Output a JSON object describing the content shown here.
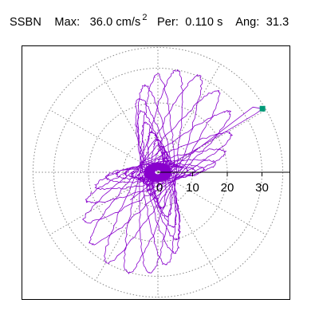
{
  "header": {
    "station": "SSBN",
    "max_label": "Max:",
    "max_value": "36.0",
    "max_unit": "cm/s",
    "max_exp": "2",
    "per_label": "Per:",
    "per_value": "0.110 s",
    "ang_label": "Ang:",
    "ang_value": "31.3"
  },
  "colors": {
    "trace": "#8800cc",
    "marker": "#009977",
    "grid": "#888888",
    "axis": "#000000"
  },
  "chart_data": {
    "type": "scatter",
    "title": "",
    "xlabel": "",
    "ylabel": "",
    "polar": true,
    "grid": true,
    "rings": [
      10,
      20,
      30
    ],
    "spokes_deg": [
      30,
      60,
      90,
      120,
      150,
      180,
      210,
      240,
      270,
      300,
      330
    ],
    "axis_range": [
      0,
      36
    ],
    "tick_labels": [
      "10",
      "20",
      "30"
    ],
    "peak": {
      "magnitude": 36.0,
      "angle_deg": 31.3
    },
    "trace_style": "orbit"
  }
}
